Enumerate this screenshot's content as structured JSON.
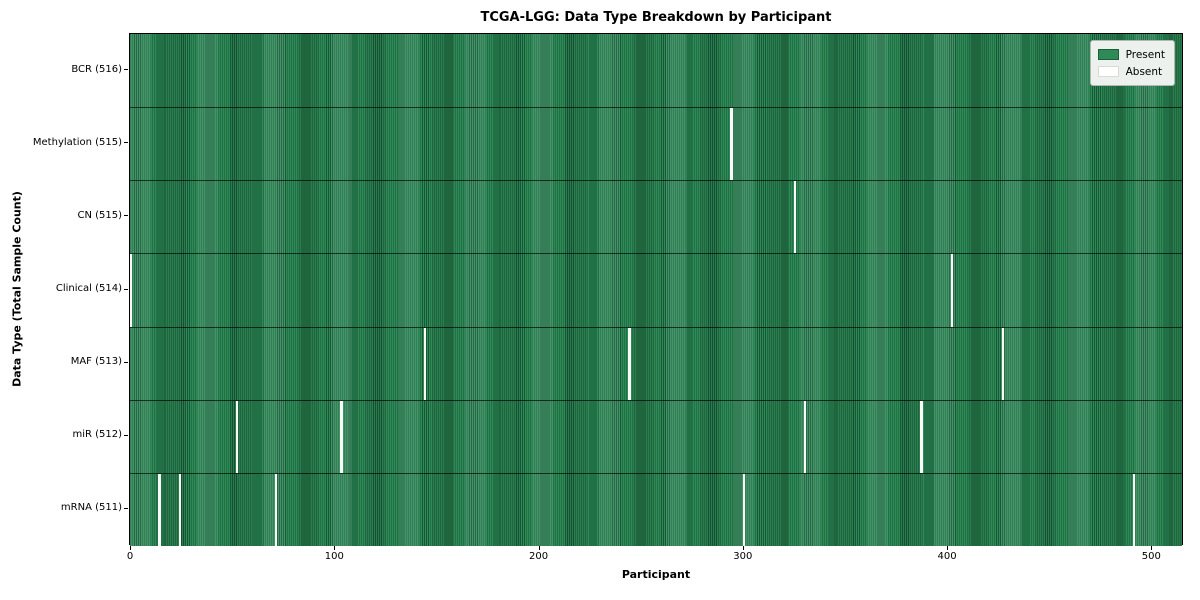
{
  "title": "TCGA-LGG: Data Type Breakdown by Participant",
  "xlabel": "Participant",
  "ylabel": "Data Type (Total Sample Count)",
  "legend": {
    "present_label": "Present",
    "absent_label": "Absent"
  },
  "colors": {
    "present": "#2e8b57",
    "present_edge": "#1b5e3a",
    "absent": "#ffffff",
    "legend_bg": "#edf1ed",
    "legend_border": "#b5b5b5"
  },
  "x_ticks": [
    "0",
    "100",
    "200",
    "300",
    "400",
    "500"
  ],
  "chart_data": {
    "type": "heatmap",
    "title": "TCGA-LGG: Data Type Breakdown by Participant",
    "xlabel": "Participant",
    "ylabel": "Data Type (Total Sample Count)",
    "x_range": [
      0,
      516
    ],
    "x_tick_values": [
      0,
      100,
      200,
      300,
      400,
      500
    ],
    "total_participants": 516,
    "legend_labels": [
      "Present",
      "Absent"
    ],
    "legend_position": "upper right",
    "grid": false,
    "rows": [
      {
        "label": "BCR (516)",
        "data_type": "BCR",
        "sample_count": 516,
        "absent_participants": []
      },
      {
        "label": "Methylation (515)",
        "data_type": "Methylation",
        "sample_count": 515,
        "absent_participants": [
          294
        ]
      },
      {
        "label": "CN (515)",
        "data_type": "CN",
        "sample_count": 515,
        "absent_participants": [
          325
        ]
      },
      {
        "label": "Clinical (514)",
        "data_type": "Clinical",
        "sample_count": 514,
        "absent_participants": [
          0,
          402
        ]
      },
      {
        "label": "MAF (513)",
        "data_type": "MAF",
        "sample_count": 513,
        "absent_participants": [
          144,
          244,
          427
        ]
      },
      {
        "label": "miR (512)",
        "data_type": "miR",
        "sample_count": 512,
        "absent_participants": [
          52,
          103,
          330,
          387
        ]
      },
      {
        "label": "mRNA (511)",
        "data_type": "mRNA",
        "sample_count": 511,
        "absent_participants": [
          14,
          24,
          71,
          300,
          491
        ]
      }
    ]
  }
}
